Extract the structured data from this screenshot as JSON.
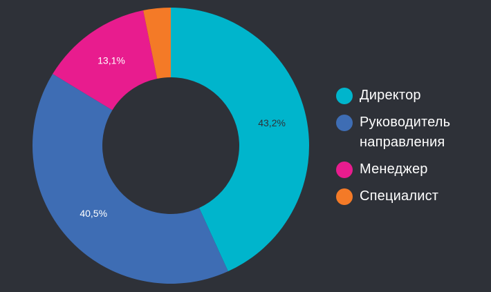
{
  "chart_data": {
    "type": "pie",
    "variant": "donut",
    "title": "",
    "slices": [
      {
        "label": "Директор",
        "value": 43.2,
        "value_label": "43,2%",
        "color": "#00b5cc",
        "label_color": "#2e3138"
      },
      {
        "label": "Руководитель направления",
        "value": 40.5,
        "value_label": "40,5%",
        "color": "#3e6db4",
        "label_color": "#ffffff"
      },
      {
        "label": "Менеджер",
        "value": 13.1,
        "value_label": "13,1%",
        "color": "#e81c8e",
        "label_color": "#ffffff"
      },
      {
        "label": "Специалист",
        "value": 3.2,
        "value_label": "",
        "color": "#f47a27",
        "label_color": "#ffffff"
      }
    ],
    "legend_position": "right",
    "background": "#2e3138"
  }
}
